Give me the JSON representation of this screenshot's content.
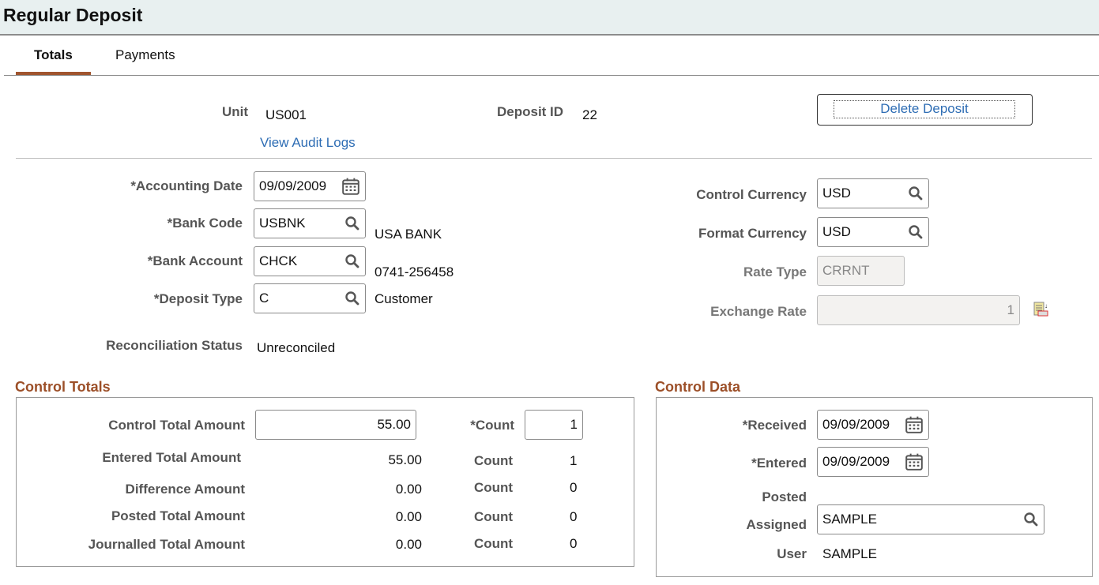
{
  "header": {
    "title": "Regular Deposit"
  },
  "tabs": [
    {
      "label": "Totals",
      "selected": true
    },
    {
      "label": "Payments",
      "selected": false
    }
  ],
  "top": {
    "unit_label": "Unit",
    "unit": "US001",
    "deposit_id_label": "Deposit ID",
    "deposit_id": "22",
    "audit_link": "View Audit Logs",
    "delete_button": "Delete Deposit"
  },
  "form": {
    "accounting_date_label": "*Accounting Date",
    "accounting_date": "09/09/2009",
    "bank_code_label": "*Bank Code",
    "bank_code": "USBNK",
    "bank_name": "USA BANK",
    "bank_account_label": "*Bank Account",
    "bank_account": "CHCK",
    "bank_account_number": "0741-256458",
    "deposit_type_label": "*Deposit Type",
    "deposit_type": "C",
    "deposit_type_desc": "Customer",
    "recon_label": "Reconciliation Status",
    "recon_status": "Unreconciled",
    "control_currency_label": "Control Currency",
    "control_currency": "USD",
    "format_currency_label": "Format Currency",
    "format_currency": "USD",
    "rate_type_label": "Rate Type",
    "rate_type": "CRRNT",
    "exchange_rate_label": "Exchange Rate",
    "exchange_rate": "1"
  },
  "control_totals": {
    "title": "Control Totals",
    "control_total_label": "Control Total Amount",
    "control_total": "55.00",
    "count_label_req": "*Count",
    "count": "1",
    "rows": [
      {
        "label": "Entered Total Amount",
        "amount": "55.00",
        "count_label": "Count",
        "count": "1"
      },
      {
        "label": "Difference Amount",
        "amount": "0.00",
        "count_label": "Count",
        "count": "0"
      },
      {
        "label": "Posted Total Amount",
        "amount": "0.00",
        "count_label": "Count",
        "count": "0"
      },
      {
        "label": "Journalled Total Amount",
        "amount": "0.00",
        "count_label": "Count",
        "count": "0"
      }
    ]
  },
  "control_data": {
    "title": "Control Data",
    "received_label": "*Received",
    "received": "09/09/2009",
    "entered_label": "*Entered",
    "entered": "09/09/2009",
    "posted_label": "Posted",
    "assigned_label": "Assigned",
    "assigned": "SAMPLE",
    "user_label": "User",
    "user": "SAMPLE"
  },
  "colors": {
    "accent": "#a0552e",
    "link": "#2e6db4",
    "section": "#9c4f28"
  }
}
